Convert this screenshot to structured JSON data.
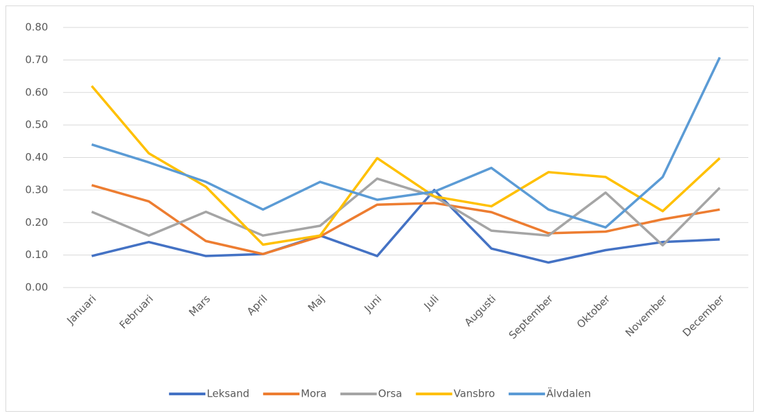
{
  "chart_data": {
    "type": "line",
    "categories": [
      "Januari",
      "Februari",
      "Mars",
      "April",
      "Maj",
      "Juni",
      "Juli",
      "Augusti",
      "September",
      "Oktober",
      "November",
      "December"
    ],
    "series": [
      {
        "name": "Leksand",
        "color": "#4472c4",
        "values": [
          0.097,
          0.14,
          0.097,
          0.103,
          0.16,
          0.097,
          0.3,
          0.12,
          0.077,
          0.115,
          0.14,
          0.148
        ]
      },
      {
        "name": "Mora",
        "color": "#ed7d31",
        "values": [
          0.315,
          0.265,
          0.143,
          0.103,
          0.157,
          0.255,
          0.26,
          0.232,
          0.167,
          0.172,
          0.21,
          0.24
        ]
      },
      {
        "name": "Orsa",
        "color": "#a5a5a5",
        "values": [
          0.233,
          0.16,
          0.233,
          0.16,
          0.19,
          0.335,
          0.28,
          0.175,
          0.16,
          0.292,
          0.13,
          0.307
        ]
      },
      {
        "name": "Vansbro",
        "color": "#ffc000",
        "values": [
          0.62,
          0.413,
          0.31,
          0.132,
          0.16,
          0.398,
          0.28,
          0.25,
          0.355,
          0.34,
          0.235,
          0.398
        ]
      },
      {
        "name": "Älvdalen",
        "color": "#5b9bd5",
        "values": [
          0.44,
          0.385,
          0.325,
          0.24,
          0.325,
          0.27,
          0.295,
          0.368,
          0.24,
          0.185,
          0.34,
          0.708
        ]
      }
    ],
    "ylim": [
      0,
      0.8
    ],
    "yticks": [
      {
        "value": 0,
        "label": "0.00"
      },
      {
        "value": 0.1,
        "label": "0.10"
      },
      {
        "value": 0.2,
        "label": "0.20"
      },
      {
        "value": 0.3,
        "label": "0.30"
      },
      {
        "value": 0.4,
        "label": "0.40"
      },
      {
        "value": 0.5,
        "label": "0.50"
      },
      {
        "value": 0.6,
        "label": "0.60"
      },
      {
        "value": 0.7,
        "label": "0.70"
      },
      {
        "value": 0.8,
        "label": "0.80"
      }
    ],
    "grid": true,
    "legend": "bottom"
  }
}
